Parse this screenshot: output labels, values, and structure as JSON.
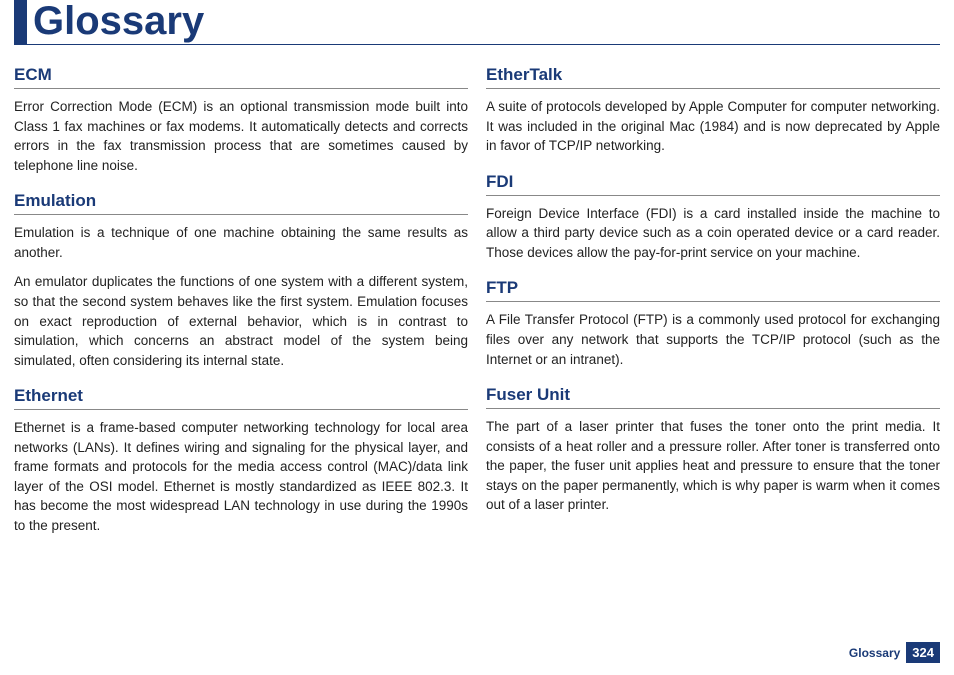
{
  "page": {
    "title": "Glossary",
    "footer_label": "Glossary",
    "page_number": "324",
    "colors": {
      "accent": "#1a3a77",
      "rule": "#888888",
      "text": "#222222",
      "bg": "#ffffff"
    }
  },
  "left": [
    {
      "term": "ECM",
      "defs": [
        "Error Correction Mode (ECM) is an optional transmission mode built into Class 1 fax machines or fax modems. It automatically detects and corrects errors in the fax transmission process that are sometimes caused by telephone line noise."
      ]
    },
    {
      "term": "Emulation",
      "defs": [
        "Emulation is a technique of one machine obtaining the same results as another.",
        "An emulator duplicates the functions of one system with a different system, so that the second system behaves like the first system. Emulation focuses on exact reproduction of external behavior, which is in contrast to simulation, which concerns an abstract model of the system being simulated, often considering its internal state."
      ]
    },
    {
      "term": "Ethernet",
      "defs": [
        "Ethernet is a frame-based computer networking technology for local area networks (LANs). It defines wiring and signaling for the physical layer, and frame formats and protocols for the media access control (MAC)/data link layer of the OSI model. Ethernet is mostly standardized as IEEE 802.3. It has become the most widespread LAN technology in use during the 1990s to the present."
      ]
    }
  ],
  "right": [
    {
      "term": "EtherTalk",
      "defs": [
        "A suite of protocols developed by Apple Computer for computer networking. It was included in the original Mac (1984) and is now deprecated by Apple in favor of TCP/IP networking."
      ]
    },
    {
      "term": "FDI",
      "defs": [
        "Foreign Device Interface (FDI) is a card installed inside the machine to allow a third party device such as a coin operated device or a card reader. Those devices allow the pay-for-print service on your machine."
      ]
    },
    {
      "term": "FTP",
      "defs": [
        "A File Transfer Protocol (FTP) is a commonly used protocol for exchanging files over any network that supports the TCP/IP protocol (such as the Internet or an intranet)."
      ]
    },
    {
      "term": "Fuser Unit",
      "defs": [
        "The part of a laser printer that fuses the toner onto the print media. It consists of a heat roller and a pressure roller. After toner is transferred onto the paper, the fuser unit applies heat and pressure to ensure that the toner stays on the paper permanently, which is why paper is warm when it comes out of a laser printer."
      ]
    }
  ]
}
